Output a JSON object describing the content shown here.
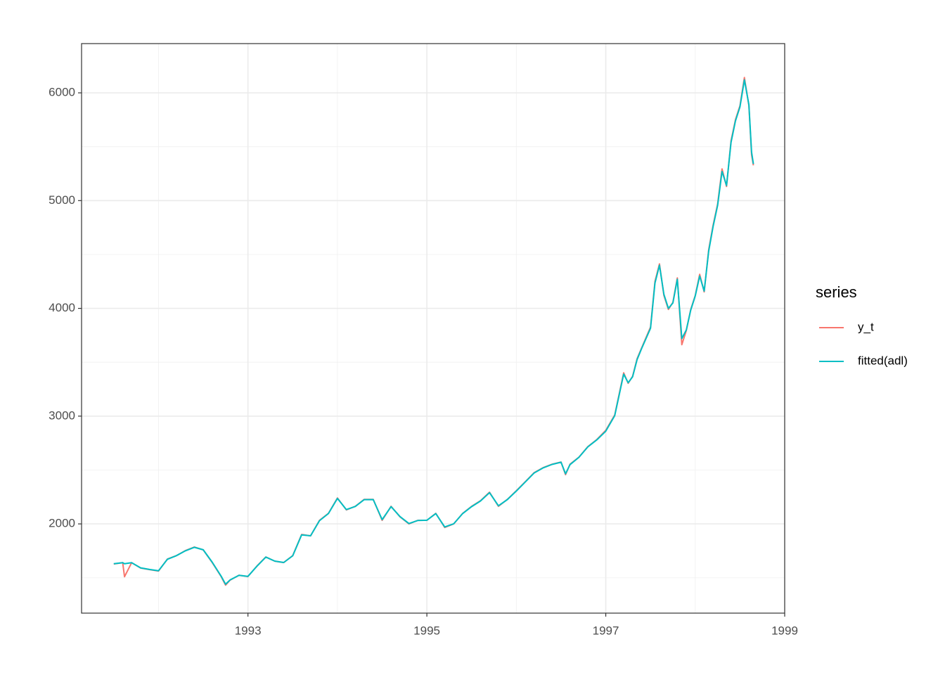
{
  "chart_data": {
    "type": "line",
    "x": [
      1991.5,
      1991.6,
      1991.62,
      1991.7,
      1991.8,
      1991.9,
      1992.0,
      1992.1,
      1992.2,
      1992.3,
      1992.4,
      1992.5,
      1992.6,
      1992.7,
      1992.75,
      1992.8,
      1992.9,
      1993.0,
      1993.1,
      1993.2,
      1993.3,
      1993.4,
      1993.5,
      1993.6,
      1993.7,
      1993.8,
      1993.9,
      1994.0,
      1994.1,
      1994.2,
      1994.3,
      1994.4,
      1994.5,
      1994.6,
      1994.7,
      1994.8,
      1994.9,
      1995.0,
      1995.1,
      1995.2,
      1995.3,
      1995.4,
      1995.5,
      1995.6,
      1995.7,
      1995.8,
      1995.9,
      1996.0,
      1996.1,
      1996.2,
      1996.3,
      1996.4,
      1996.5,
      1996.55,
      1996.6,
      1996.7,
      1996.8,
      1996.9,
      1997.0,
      1997.1,
      1997.2,
      1997.25,
      1997.3,
      1997.35,
      1997.4,
      1997.5,
      1997.55,
      1997.6,
      1997.65,
      1997.7,
      1997.75,
      1997.8,
      1997.85,
      1997.9,
      1997.95,
      1998.0,
      1998.05,
      1998.1,
      1998.15,
      1998.2,
      1998.25,
      1998.3,
      1998.35,
      1998.4,
      1998.45,
      1998.5,
      1998.55,
      1998.6,
      1998.63,
      1998.65
    ],
    "series": [
      {
        "name": "y_t",
        "color": "#F8766D",
        "values": [
          1628,
          1640,
          1510,
          1640,
          1590,
          1576,
          1563,
          1674,
          1706,
          1752,
          1785,
          1759,
          1641,
          1511,
          1432,
          1478,
          1524,
          1511,
          1609,
          1693,
          1654,
          1641,
          1706,
          1902,
          1889,
          2033,
          2098,
          2241,
          2130,
          2163,
          2228,
          2228,
          2033,
          2163,
          2065,
          2000,
          2033,
          2033,
          2098,
          1967,
          2000,
          2098,
          2163,
          2215,
          2294,
          2163,
          2228,
          2307,
          2391,
          2476,
          2522,
          2554,
          2574,
          2457,
          2554,
          2620,
          2718,
          2783,
          2868,
          3011,
          3402,
          3305,
          3370,
          3533,
          3631,
          3826,
          4250,
          4413,
          4120,
          3990,
          4055,
          4283,
          3663,
          3794,
          3990,
          4120,
          4316,
          4153,
          4544,
          4772,
          4968,
          5294,
          5131,
          5555,
          5751,
          5881,
          6142,
          5881,
          5425,
          5327
        ]
      },
      {
        "name": "fitted(adl)",
        "color": "#00BFC4",
        "values": [
          1630,
          1640,
          1630,
          1640,
          1592,
          1577,
          1565,
          1672,
          1705,
          1750,
          1783,
          1760,
          1645,
          1515,
          1440,
          1480,
          1523,
          1513,
          1607,
          1692,
          1655,
          1642,
          1704,
          1898,
          1890,
          2030,
          2096,
          2236,
          2133,
          2162,
          2225,
          2226,
          2040,
          2160,
          2068,
          2003,
          2032,
          2034,
          2096,
          1972,
          2001,
          2096,
          2160,
          2213,
          2290,
          2168,
          2226,
          2305,
          2388,
          2473,
          2520,
          2552,
          2572,
          2465,
          2550,
          2618,
          2715,
          2780,
          2860,
          3005,
          3390,
          3310,
          3365,
          3525,
          3625,
          3815,
          4235,
          4400,
          4130,
          4000,
          4050,
          4270,
          3720,
          3800,
          3985,
          4115,
          4300,
          4160,
          4530,
          4760,
          4955,
          5270,
          5140,
          5540,
          5740,
          5870,
          6120,
          5890,
          5450,
          5340
        ]
      }
    ],
    "xlim": [
      1991.14,
      1999.0
    ],
    "ylim": [
      1172,
      6457
    ],
    "xticks": [
      1993,
      1995,
      1997,
      1999
    ],
    "yticks": [
      2000,
      3000,
      4000,
      5000,
      6000
    ],
    "xminor": [
      1992,
      1994,
      1996,
      1998
    ],
    "yminor": [
      1500,
      2500,
      3500,
      4500,
      5500
    ],
    "grid": true,
    "legend_title": "series",
    "legend_position": "right"
  }
}
